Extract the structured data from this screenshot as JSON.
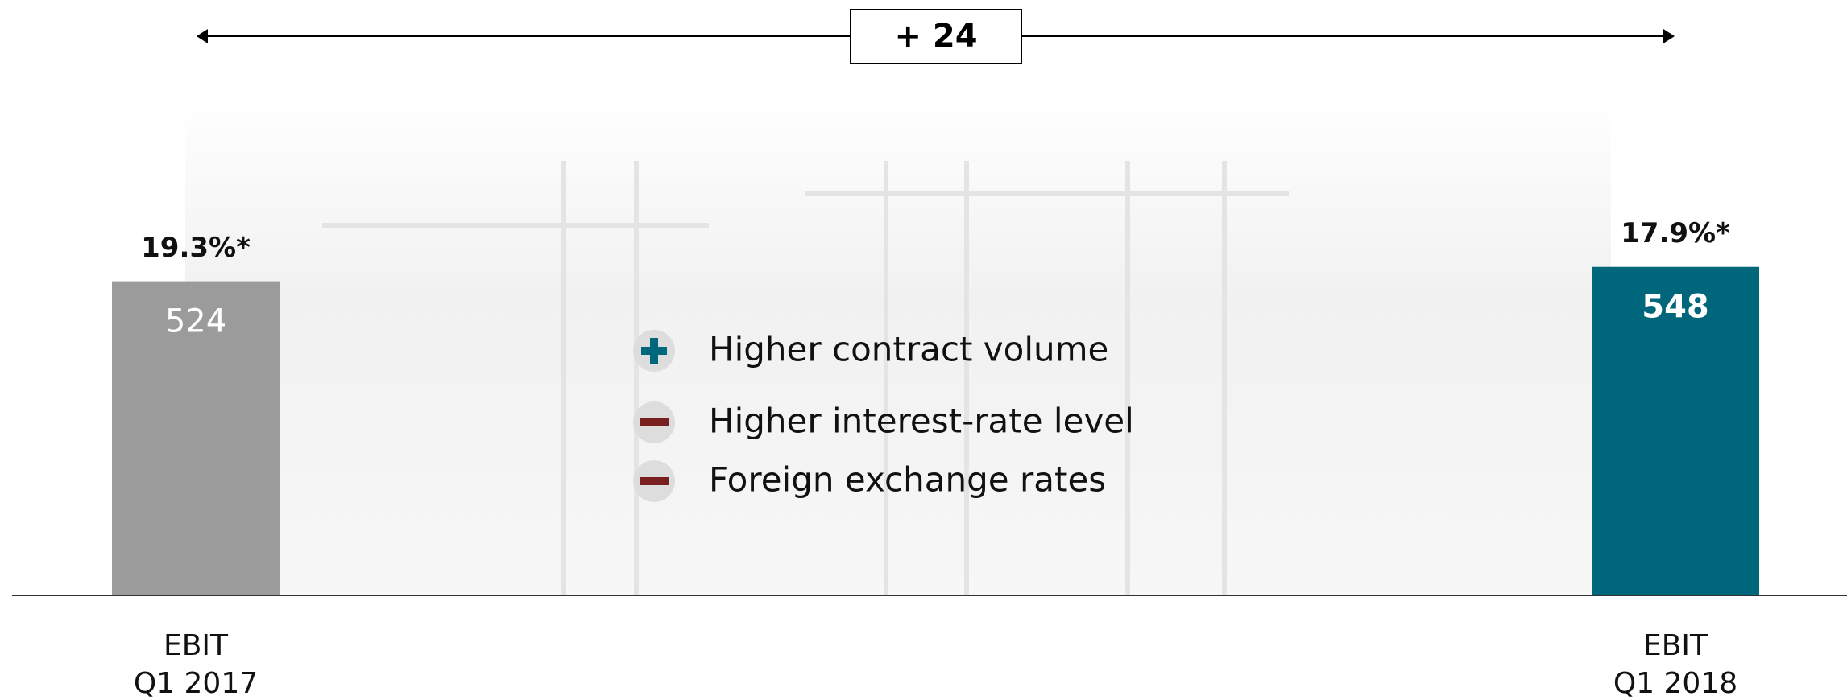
{
  "chart_data": {
    "type": "bar",
    "categories": [
      [
        "EBIT",
        "Q1 2017"
      ],
      [
        "EBIT",
        "Q1 2018"
      ]
    ],
    "values": [
      524,
      548
    ],
    "colors": [
      "#9b9b9b",
      "#00667c"
    ],
    "margin_labels": [
      "19.3%*",
      "17.9%*"
    ],
    "ylim": [
      0,
      600
    ],
    "difference_label": "+ 24",
    "factors": [
      "Higher contract volume",
      "Higher interest-rate level",
      "Foreign exchange rates"
    ]
  }
}
